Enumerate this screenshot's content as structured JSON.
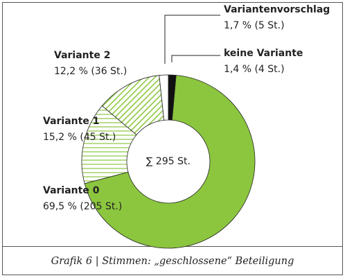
{
  "chart_data": {
    "type": "donut",
    "center_label": "∑ 295 St.",
    "caption": "Grafik 6 | Stimmen: „geschlossene“ Beteiligung",
    "categories": [
      "Variante 0",
      "Variante 1",
      "Variante 2",
      "Variantenvorschlag",
      "keine Variante"
    ],
    "values": [
      69.5,
      15.2,
      12.2,
      1.7,
      1.4
    ],
    "value_labels": [
      "69,5 % (205 St.)",
      "15,2 % (45 St.)",
      "12,2 % (36 St.)",
      "1,7 % (5 St.)",
      "1,4 % (4 St.)"
    ],
    "colors": [
      "#8cc63f",
      "url(#hatch-h)",
      "url(#hatch-d)",
      "#ffffff",
      "#111111"
    ]
  }
}
